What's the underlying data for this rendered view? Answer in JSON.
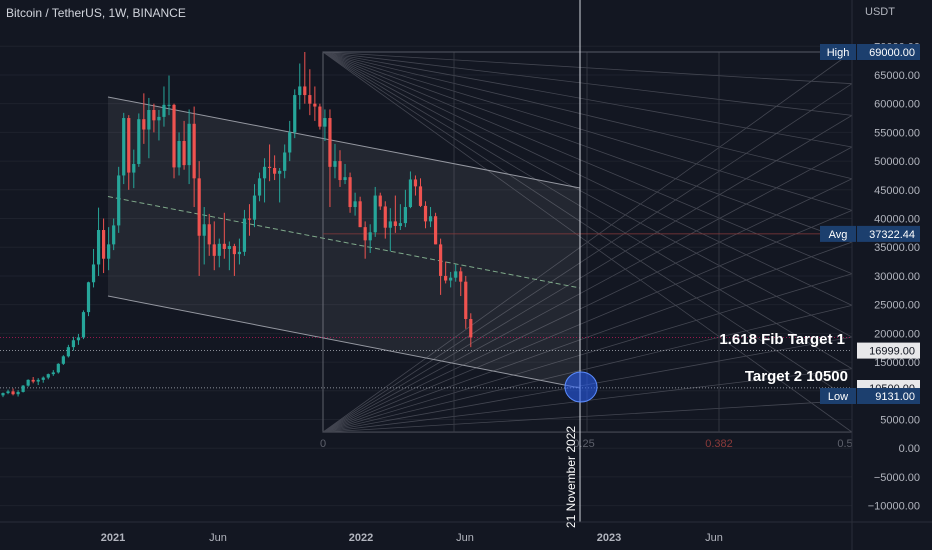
{
  "header": {
    "title": "Bitcoin / TetherUS, 1W, BINANCE",
    "unit": "USDT"
  },
  "chart_data": {
    "type": "candlestick",
    "symbol": "Bitcoin / TetherUS",
    "interval": "1W",
    "exchange": "BINANCE",
    "y_axis": {
      "ticks": [
        70000,
        65000,
        60000,
        55000,
        50000,
        45000,
        40000,
        35000,
        30000,
        25000,
        20000,
        15000,
        10000,
        5000,
        0,
        -5000,
        -10000
      ],
      "tick_labels": [
        "70000.00",
        "65000.00",
        "60000.00",
        "55000.00",
        "50000.00",
        "45000.00",
        "40000.00",
        "35000.00",
        "30000.00",
        "25000.00",
        "20000.00",
        "15000.00",
        "10000.00",
        "5000.00",
        "0.00",
        "−5000.00",
        "−10000.00"
      ],
      "range": [
        -12000,
        75000
      ]
    },
    "x_axis": {
      "labels": [
        "2021",
        "Jun",
        "2022",
        "Jun",
        "2023",
        "Jun"
      ]
    },
    "price_labels": [
      {
        "label": "High",
        "value": "69000.00"
      },
      {
        "label": "Avg",
        "value": "37322.44"
      },
      {
        "label": "",
        "value": "16999.00"
      },
      {
        "label": "",
        "value": "10500.00"
      },
      {
        "label": "Low",
        "value": "9131.00"
      }
    ],
    "annotations": [
      {
        "text": "1.618 Fib Target 1",
        "price": 19300
      },
      {
        "text": "Target 2 10500",
        "price": 10500
      },
      {
        "text": "21 November 2022",
        "kind": "vertical-line"
      }
    ],
    "fib_time_labels": [
      "0",
      "0.25",
      "0.382",
      "0.5"
    ],
    "candles": [
      [
        9200,
        9700,
        8900,
        9600
      ],
      [
        9600,
        10200,
        9400,
        9900
      ],
      [
        9900,
        10400,
        9200,
        9400
      ],
      [
        9400,
        10100,
        9000,
        9800
      ],
      [
        9800,
        11000,
        9700,
        10900
      ],
      [
        10900,
        12000,
        10700,
        11900
      ],
      [
        11900,
        12400,
        11300,
        11600
      ],
      [
        11600,
        12200,
        11000,
        11900
      ],
      [
        11900,
        12500,
        11400,
        12300
      ],
      [
        12300,
        13000,
        12000,
        12900
      ],
      [
        12900,
        13600,
        12600,
        13200
      ],
      [
        13200,
        14800,
        13000,
        14700
      ],
      [
        14700,
        16200,
        14500,
        16000
      ],
      [
        16000,
        18000,
        15800,
        17600
      ],
      [
        17600,
        19400,
        17000,
        18800
      ],
      [
        18800,
        19900,
        18000,
        19300
      ],
      [
        19300,
        24000,
        19000,
        23700
      ],
      [
        23700,
        29000,
        23000,
        28900
      ],
      [
        28900,
        34700,
        28000,
        32000
      ],
      [
        32000,
        41900,
        30000,
        38000
      ],
      [
        38000,
        40000,
        30500,
        33000
      ],
      [
        33000,
        38500,
        31000,
        35500
      ],
      [
        35500,
        40000,
        34500,
        38800
      ],
      [
        38800,
        49000,
        37500,
        47500
      ],
      [
        47500,
        58400,
        46000,
        57500
      ],
      [
        57500,
        58000,
        45000,
        48000
      ],
      [
        48000,
        52000,
        45300,
        49500
      ],
      [
        49500,
        58300,
        49000,
        57300
      ],
      [
        57300,
        61800,
        53000,
        55500
      ],
      [
        55500,
        61000,
        50500,
        58900
      ],
      [
        58900,
        60000,
        55000,
        57100
      ],
      [
        57100,
        58900,
        53600,
        57700
      ],
      [
        57700,
        63000,
        56000,
        59800
      ],
      [
        59800,
        64900,
        58000,
        59800
      ],
      [
        59800,
        60000,
        47000,
        48900
      ],
      [
        48900,
        55000,
        47500,
        53500
      ],
      [
        53500,
        57000,
        48500,
        49300
      ],
      [
        49300,
        59000,
        46000,
        56500
      ],
      [
        56500,
        59500,
        42000,
        47000
      ],
      [
        47000,
        50000,
        30000,
        37000
      ],
      [
        37000,
        42000,
        32000,
        39000
      ],
      [
        39000,
        40800,
        33500,
        35500
      ],
      [
        35500,
        39500,
        31000,
        33500
      ],
      [
        33500,
        36500,
        31500,
        35600
      ],
      [
        35600,
        41000,
        33000,
        34700
      ],
      [
        34700,
        36000,
        31000,
        35200
      ],
      [
        35200,
        35600,
        30000,
        33800
      ],
      [
        33800,
        36500,
        32000,
        34200
      ],
      [
        34200,
        41500,
        33500,
        40000
      ],
      [
        40000,
        42500,
        37000,
        39800
      ],
      [
        39800,
        46000,
        38500,
        44000
      ],
      [
        44000,
        48000,
        43000,
        47000
      ],
      [
        47000,
        50500,
        42800,
        49000
      ],
      [
        49000,
        52900,
        46500,
        48800
      ],
      [
        48800,
        51000,
        46700,
        47800
      ],
      [
        47800,
        48800,
        42800,
        48300
      ],
      [
        48300,
        52900,
        47000,
        51500
      ],
      [
        51500,
        57000,
        50000,
        55000
      ],
      [
        55000,
        62500,
        54000,
        61500
      ],
      [
        61500,
        67000,
        59000,
        63000
      ],
      [
        63000,
        69000,
        60000,
        61500
      ],
      [
        61500,
        66000,
        58000,
        60000
      ],
      [
        60000,
        63000,
        57000,
        59500
      ],
      [
        59500,
        60000,
        55500,
        56000
      ],
      [
        56000,
        59000,
        53500,
        57500
      ],
      [
        57500,
        59000,
        42000,
        49000
      ],
      [
        49000,
        53000,
        47000,
        50000
      ],
      [
        50000,
        51900,
        45500,
        46700
      ],
      [
        46700,
        49500,
        46000,
        47200
      ],
      [
        47200,
        48000,
        41000,
        42000
      ],
      [
        42000,
        44500,
        40500,
        43000
      ],
      [
        43000,
        43800,
        38500,
        38500
      ],
      [
        38500,
        39500,
        33000,
        36200
      ],
      [
        36200,
        39000,
        34000,
        37600
      ],
      [
        37600,
        45500,
        36800,
        44000
      ],
      [
        44000,
        44500,
        41500,
        42100
      ],
      [
        42100,
        43000,
        36500,
        38400
      ],
      [
        38400,
        41800,
        34300,
        39500
      ],
      [
        39500,
        44000,
        37500,
        38700
      ],
      [
        38700,
        42500,
        38000,
        39200
      ],
      [
        39200,
        45000,
        38500,
        42000
      ],
      [
        42000,
        48200,
        41800,
        46800
      ],
      [
        46800,
        47500,
        44000,
        45600
      ],
      [
        45600,
        47000,
        42000,
        42200
      ],
      [
        42200,
        43000,
        38300,
        39500
      ],
      [
        39500,
        42000,
        38500,
        40400
      ],
      [
        40400,
        41000,
        35500,
        35500
      ],
      [
        35500,
        36500,
        26700,
        30000
      ],
      [
        30000,
        32500,
        28700,
        29200
      ],
      [
        29200,
        30700,
        28000,
        29700
      ],
      [
        29700,
        32000,
        29000,
        30800
      ],
      [
        30800,
        31500,
        26500,
        29000
      ],
      [
        29000,
        30000,
        20800,
        22500
      ],
      [
        22500,
        23500,
        17600,
        19300
      ]
    ]
  }
}
